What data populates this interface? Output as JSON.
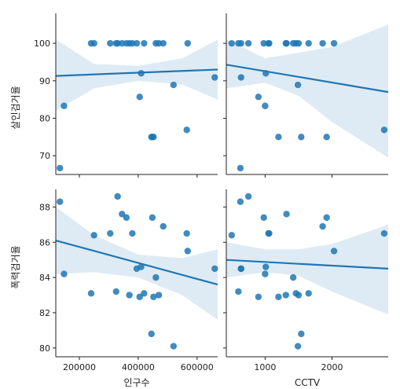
{
  "chart_data": {
    "type": "scatter",
    "kind": "pairplot-regression",
    "colors": {
      "point": "#1f77b4",
      "line": "#1f77b4",
      "band": "#1f77b4",
      "axis": "#222222"
    },
    "x_variables": [
      {
        "label": "인구수",
        "range": [
          120000,
          670000
        ],
        "ticks": [
          200000,
          400000,
          600000
        ],
        "tick_labels": [
          "200000",
          "400000",
          "600000"
        ]
      },
      {
        "label": "CCTV",
        "range": [
          420,
          2840
        ],
        "ticks": [
          1000,
          2000
        ],
        "tick_labels": [
          "1000",
          "2000"
        ]
      }
    ],
    "y_variables": [
      {
        "label": "살인검거율",
        "range": [
          65,
          108
        ],
        "ticks": [
          70,
          80,
          90,
          100
        ],
        "tick_labels": [
          "70",
          "80",
          "90",
          "100"
        ]
      },
      {
        "label": "폭력검거율",
        "range": [
          79.5,
          89.0
        ],
        "ticks": [
          80,
          82,
          84,
          86,
          88
        ],
        "tick_labels": [
          "80",
          "82",
          "84",
          "86",
          "88"
        ]
      }
    ],
    "grid": false,
    "legend": "none",
    "observations": [
      {
        "pop": 134000,
        "cctv": 630,
        "murder": 66.7,
        "assault": 88.3
      },
      {
        "pop": 148000,
        "cctv": 1000,
        "murder": 83.3,
        "assault": 84.2
      },
      {
        "pop": 240000,
        "cctv": 1460,
        "murder": 100,
        "assault": 83.1
      },
      {
        "pop": 250000,
        "cctv": 500,
        "murder": 100,
        "assault": 86.4
      },
      {
        "pop": 305000,
        "cctv": 1060,
        "murder": 100,
        "assault": 86.5
      },
      {
        "pop": 325000,
        "cctv": 600,
        "murder": 100,
        "assault": 83.2
      },
      {
        "pop": 330000,
        "cctv": 750,
        "murder": 100,
        "assault": 88.6
      },
      {
        "pop": 345000,
        "cctv": 1320,
        "murder": 100,
        "assault": 87.6
      },
      {
        "pop": 360000,
        "cctv": 980,
        "murder": 100,
        "assault": 87.4
      },
      {
        "pop": 370000,
        "cctv": 1500,
        "murder": 100,
        "assault": 83.0
      },
      {
        "pop": 380000,
        "cctv": 1050,
        "murder": 100,
        "assault": 86.5
      },
      {
        "pop": 395000,
        "cctv": 640,
        "murder": 100,
        "assault": 84.5
      },
      {
        "pop": 405000,
        "cctv": 900,
        "murder": 85.7,
        "assault": 82.9
      },
      {
        "pop": 410000,
        "cctv": 1010,
        "murder": 92.0,
        "assault": 84.6
      },
      {
        "pop": 420000,
        "cctv": 1650,
        "murder": 100,
        "assault": 83.1
      },
      {
        "pop": 445000,
        "cctv": 1540,
        "murder": 75.0,
        "assault": 80.8
      },
      {
        "pop": 448000,
        "cctv": 1920,
        "murder": 75.0,
        "assault": 87.4
      },
      {
        "pop": 452000,
        "cctv": 1200,
        "murder": 75.0,
        "assault": 82.9
      },
      {
        "pop": 460000,
        "cctv": 1420,
        "murder": 100,
        "assault": 84.0
      },
      {
        "pop": 470000,
        "cctv": 1310,
        "murder": 100,
        "assault": 83.0
      },
      {
        "pop": 485000,
        "cctv": 1860,
        "murder": 100,
        "assault": 86.9
      },
      {
        "pop": 520000,
        "cctv": 1490,
        "murder": 88.9,
        "assault": 80.1
      },
      {
        "pop": 565000,
        "cctv": 2780,
        "murder": 76.9,
        "assault": 86.5
      },
      {
        "pop": 568000,
        "cctv": 2030,
        "murder": 100,
        "assault": 85.5
      },
      {
        "pop": 660000,
        "cctv": 640,
        "murder": 90.9,
        "assault": 84.5
      }
    ],
    "regressions": [
      {
        "row": 0,
        "col": 0,
        "line": [
          [
            120000,
            91.3
          ],
          [
            670000,
            93.0
          ]
        ],
        "band_lower": [
          [
            120000,
            82.0
          ],
          [
            250000,
            88.0
          ],
          [
            400000,
            90.0
          ],
          [
            550000,
            89.0
          ],
          [
            670000,
            85.0
          ]
        ],
        "band_upper": [
          [
            120000,
            101.0
          ],
          [
            250000,
            94.5
          ],
          [
            400000,
            94.0
          ],
          [
            550000,
            96.0
          ],
          [
            670000,
            101.0
          ]
        ]
      },
      {
        "row": 0,
        "col": 1,
        "line": [
          [
            420,
            94.3
          ],
          [
            2840,
            87.0
          ]
        ],
        "band_lower": [
          [
            420,
            88.0
          ],
          [
            1000,
            89.5
          ],
          [
            1500,
            86.0
          ],
          [
            2000,
            79.0
          ],
          [
            2840,
            69.5
          ]
        ],
        "band_upper": [
          [
            420,
            101.0
          ],
          [
            1000,
            96.0
          ],
          [
            1500,
            97.5
          ],
          [
            2000,
            99.0
          ],
          [
            2840,
            105.0
          ]
        ]
      },
      {
        "row": 1,
        "col": 0,
        "line": [
          [
            120000,
            86.1
          ],
          [
            670000,
            83.6
          ]
        ],
        "band_lower": [
          [
            120000,
            84.2
          ],
          [
            250000,
            84.3
          ],
          [
            400000,
            84.0
          ],
          [
            550000,
            83.0
          ],
          [
            670000,
            81.6
          ]
        ],
        "band_upper": [
          [
            120000,
            88.0
          ],
          [
            250000,
            86.4
          ],
          [
            400000,
            85.3
          ],
          [
            550000,
            85.1
          ],
          [
            670000,
            85.6
          ]
        ]
      },
      {
        "row": 1,
        "col": 1,
        "line": [
          [
            420,
            85.0
          ],
          [
            2840,
            84.5
          ]
        ],
        "band_lower": [
          [
            420,
            84.0
          ],
          [
            1000,
            84.3
          ],
          [
            1500,
            84.1
          ],
          [
            2000,
            83.2
          ],
          [
            2840,
            81.9
          ]
        ],
        "band_upper": [
          [
            420,
            86.0
          ],
          [
            1000,
            85.6
          ],
          [
            1500,
            85.6
          ],
          [
            2000,
            85.9
          ],
          [
            2840,
            87.0
          ]
        ]
      }
    ]
  }
}
